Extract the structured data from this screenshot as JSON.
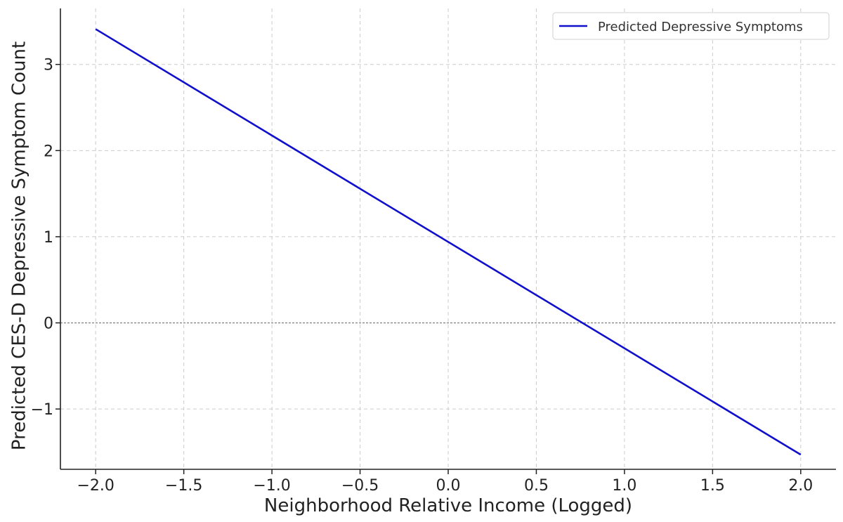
{
  "chart_data": {
    "type": "line",
    "title": "",
    "xlabel": "Neighborhood Relative Income (Logged)",
    "ylabel": "Predicted CES-D Depressive Symptom Count",
    "xlim": [
      -2.2,
      2.2
    ],
    "ylim": [
      -1.7,
      3.65
    ],
    "x_ticks": [
      -2.0,
      -1.5,
      -1.0,
      -0.5,
      0.0,
      0.5,
      1.0,
      1.5,
      2.0
    ],
    "x_tick_labels": [
      "−2.0",
      "−1.5",
      "−1.0",
      "−0.5",
      "0.0",
      "0.5",
      "1.0",
      "1.5",
      "2.0"
    ],
    "y_ticks": [
      3,
      2,
      1,
      0,
      -1
    ],
    "y_tick_labels": [
      "3",
      "2",
      "1",
      "0",
      "−1"
    ],
    "grid": true,
    "grid_style": "dashed",
    "reference_line_y": 0,
    "legend_position": "top-right",
    "series": [
      {
        "name": "Predicted Depressive Symptoms",
        "color": "#1010cc",
        "x": [
          -2.0,
          2.0
        ],
        "y": [
          3.41,
          -1.53
        ]
      }
    ]
  }
}
